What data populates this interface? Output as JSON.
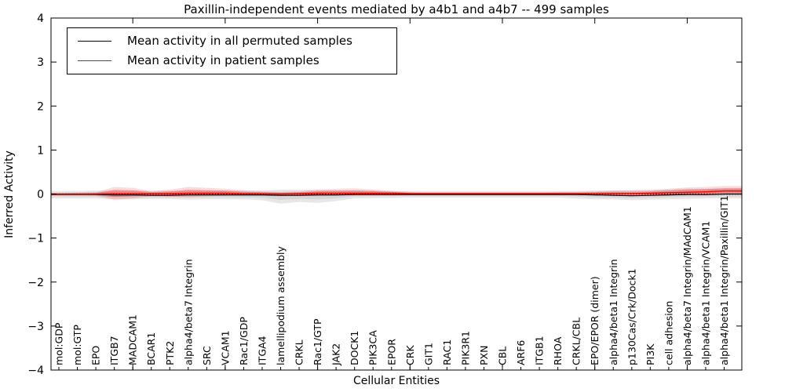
{
  "figure": {
    "title": "Paxillin-independent events mediated by a4b1 and a4b7 -- 499 samples",
    "xlabel": "Cellular Entities",
    "ylabel": "Inferred Activity"
  },
  "legend": {
    "entries": [
      {
        "label": "Mean activity in all permuted samples",
        "color": "#000000"
      },
      {
        "label": "Mean activity in patient samples",
        "color": "#ff0000"
      }
    ]
  },
  "colors": {
    "permuted_band": "#b0b0b0",
    "patient_band": "#ff0000",
    "permuted_line": "#000000",
    "patient_line": "#ff0000",
    "zero_line": "#000000",
    "axes": "#000000"
  },
  "chart_data": {
    "type": "area",
    "title": "Paxillin-independent events mediated by a4b1 and a4b7 -- 499 samples",
    "xlabel": "Cellular Entities",
    "ylabel": "Inferred Activity",
    "ylim": [
      -4,
      4
    ],
    "yticks": [
      -4,
      -3,
      -2,
      -1,
      0,
      1,
      2,
      3,
      4
    ],
    "ytick_labels": [
      "−4",
      "−3",
      "−2",
      "−1",
      "0",
      "1",
      "2",
      "3",
      "4"
    ],
    "grid": false,
    "legend_position": "upper left",
    "zero_line": {
      "y": 0,
      "style": "dotted",
      "color": "#000000"
    },
    "categories": [
      "mol:GDP",
      "mol:GTP",
      "EPO",
      "ITGB7",
      "MADCAM1",
      "BCAR1",
      "PTK2",
      "alpha4/beta7 Integrin",
      "SRC",
      "VCAM1",
      "Rac1/GDP",
      "ITGA4",
      "lamellipodium assembly",
      "CRKL",
      "Rac1/GTP",
      "JAK2",
      "DOCK1",
      "PIK3CA",
      "EPOR",
      "CRK",
      "GIT1",
      "RAC1",
      "PIK3R1",
      "PXN",
      "CBL",
      "ARF6",
      "ITGB1",
      "RHOA",
      "CRKL/CBL",
      "EPO/EPOR (dimer)",
      "alpha4/beta1 Integrin",
      "p130Cas/Crk/Dock1",
      "PI3K",
      "cell adhesion",
      "alpha4/beta7 Integrin/MAdCAM1",
      "alpha4/beta1 Integrin/VCAM1",
      "alpha4/beta1 Integrin/Paxillin/GIT1"
    ],
    "series": [
      {
        "name": "Permuted samples activity range",
        "type": "band",
        "color": "#b0b0b0",
        "upper": [
          0.07,
          0.07,
          0.08,
          0.08,
          0.08,
          0.07,
          0.07,
          0.08,
          0.08,
          0.08,
          0.08,
          0.08,
          0.1,
          0.1,
          0.09,
          0.08,
          0.08,
          0.08,
          0.07,
          0.07,
          0.07,
          0.07,
          0.07,
          0.07,
          0.07,
          0.07,
          0.07,
          0.07,
          0.07,
          0.08,
          0.08,
          0.09,
          0.09,
          0.1,
          0.12,
          0.12,
          0.13
        ],
        "lower": [
          -0.1,
          -0.1,
          -0.1,
          -0.12,
          -0.12,
          -0.11,
          -0.11,
          -0.13,
          -0.12,
          -0.12,
          -0.12,
          -0.14,
          -0.22,
          -0.18,
          -0.2,
          -0.16,
          -0.1,
          -0.09,
          -0.09,
          -0.08,
          -0.08,
          -0.08,
          -0.08,
          -0.08,
          -0.08,
          -0.08,
          -0.08,
          -0.08,
          -0.1,
          -0.12,
          -0.12,
          -0.14,
          -0.13,
          -0.12,
          -0.11,
          -0.1,
          -0.1
        ]
      },
      {
        "name": "Patient samples activity range",
        "type": "band",
        "color": "#ff0000",
        "upper": [
          0.02,
          0.03,
          0.04,
          0.16,
          0.14,
          0.07,
          0.1,
          0.16,
          0.14,
          0.12,
          0.08,
          0.06,
          0.05,
          0.06,
          0.1,
          0.12,
          0.13,
          0.1,
          0.07,
          0.05,
          0.04,
          0.04,
          0.04,
          0.04,
          0.04,
          0.04,
          0.04,
          0.05,
          0.05,
          0.06,
          0.08,
          0.08,
          0.09,
          0.12,
          0.15,
          0.16,
          0.18
        ],
        "lower": [
          -0.03,
          -0.03,
          -0.04,
          -0.13,
          -0.1,
          -0.05,
          -0.06,
          -0.07,
          -0.05,
          -0.04,
          -0.04,
          -0.04,
          -0.05,
          -0.04,
          -0.05,
          -0.04,
          -0.03,
          -0.03,
          -0.03,
          -0.02,
          -0.02,
          -0.02,
          -0.02,
          -0.02,
          -0.02,
          -0.02,
          -0.02,
          -0.02,
          -0.02,
          -0.03,
          -0.03,
          -0.04,
          -0.03,
          -0.03,
          -0.02,
          -0.01,
          0.0
        ]
      },
      {
        "name": "Mean activity in all permuted samples",
        "type": "line",
        "color": "#000000",
        "values": [
          -0.01,
          -0.01,
          -0.01,
          -0.02,
          -0.02,
          -0.03,
          -0.03,
          -0.02,
          -0.02,
          -0.02,
          -0.02,
          -0.02,
          -0.03,
          -0.03,
          -0.02,
          -0.02,
          -0.01,
          -0.01,
          -0.01,
          -0.01,
          -0.01,
          -0.01,
          -0.01,
          -0.01,
          -0.01,
          -0.01,
          -0.01,
          -0.01,
          -0.01,
          -0.02,
          -0.03,
          -0.04,
          -0.03,
          -0.02,
          -0.01,
          -0.01,
          0.0
        ]
      },
      {
        "name": "Mean activity in patient samples",
        "type": "line",
        "color": "#ff0000",
        "values": [
          0.0,
          0.0,
          0.0,
          0.01,
          0.01,
          0.01,
          0.01,
          0.02,
          0.02,
          0.02,
          0.01,
          0.01,
          0.0,
          0.01,
          0.02,
          0.02,
          0.02,
          0.02,
          0.02,
          0.01,
          0.01,
          0.01,
          0.01,
          0.01,
          0.01,
          0.01,
          0.01,
          0.01,
          0.01,
          0.01,
          0.01,
          0.01,
          0.02,
          0.03,
          0.04,
          0.05,
          0.07
        ]
      }
    ]
  }
}
